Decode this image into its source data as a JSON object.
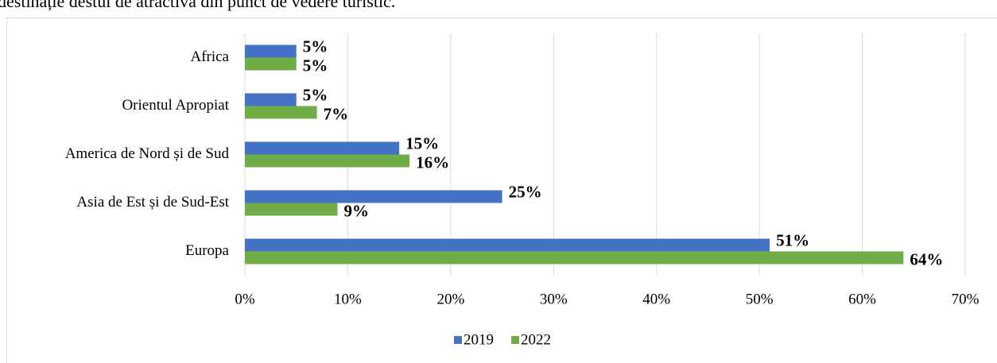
{
  "lead_text": "destinație destul de atractivă din punct de vedere turistic.",
  "chart_data": {
    "type": "hbar",
    "categories": [
      "Africa",
      "Orientul Apropiat",
      "America de Nord și de Sud",
      "Asia de Est și de Sud-Est",
      "Europa"
    ],
    "series": [
      {
        "name": "2019",
        "color": "#4472c4",
        "values": [
          5,
          5,
          15,
          25,
          51
        ],
        "value_labels": [
          "5%",
          "5%",
          "15%",
          "25%",
          "51%"
        ]
      },
      {
        "name": "2022",
        "color": "#70ad47",
        "values": [
          5,
          7,
          16,
          9,
          64
        ],
        "value_labels": [
          "5%",
          "7%",
          "16%",
          "9%",
          "64%"
        ]
      }
    ],
    "xlim": [
      0,
      70
    ],
    "xticks": [
      {
        "value": 0,
        "label": "0%"
      },
      {
        "value": 10,
        "label": "10%"
      },
      {
        "value": 20,
        "label": "20%"
      },
      {
        "value": 30,
        "label": "30%"
      },
      {
        "value": 40,
        "label": "40%"
      },
      {
        "value": 50,
        "label": "50%"
      },
      {
        "value": 60,
        "label": "60%"
      },
      {
        "value": 70,
        "label": "70%"
      }
    ],
    "grid": true,
    "legend": "bottom"
  }
}
